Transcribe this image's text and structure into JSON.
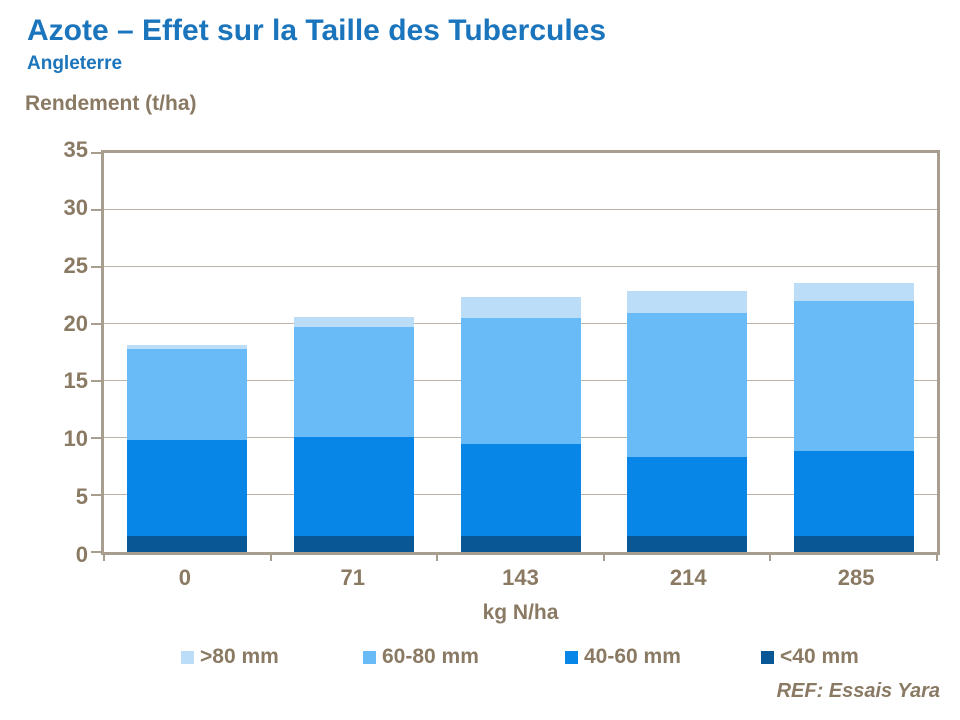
{
  "header": {
    "title": "Azote – Effet sur la Taille des Tubercules",
    "subtitle": "Angleterre"
  },
  "colors": {
    "title_blue": "#1B75BC",
    "text_brown": "#8A7A64",
    "frame": "#A79E90",
    "gridline": "#BCB4A9"
  },
  "chart_data": {
    "type": "bar",
    "stacked": true,
    "ylabel": "Rendement (t/ha)",
    "xlabel": "kg N/ha",
    "categories": [
      "0",
      "71",
      "143",
      "214",
      "285"
    ],
    "series": [
      {
        "name": "<40 mm",
        "color": "#0A5796",
        "values": [
          1.4,
          1.4,
          1.4,
          1.4,
          1.4
        ]
      },
      {
        "name": "40-60 mm",
        "color": "#0886E8",
        "values": [
          8.4,
          8.7,
          8.1,
          6.9,
          7.5
        ]
      },
      {
        "name": "60-80 mm",
        "color": "#69BBF8",
        "values": [
          8.0,
          9.6,
          11.0,
          12.7,
          13.1
        ]
      },
      {
        "name": ">80 mm",
        "color": "#BCDDF8",
        "values": [
          0.4,
          0.9,
          1.9,
          1.9,
          1.6
        ]
      }
    ],
    "totals": [
      18.2,
      20.6,
      22.4,
      22.9,
      23.6
    ],
    "legend_order": [
      ">80 mm",
      "60-80 mm",
      "40-60 mm",
      "<40 mm"
    ],
    "legend_position": "bottom",
    "ylim": [
      0,
      35
    ],
    "yticks": [
      0,
      5,
      10,
      15,
      20,
      25,
      30,
      35
    ],
    "grid": true
  },
  "footer": {
    "ref": "REF: Essais Yara"
  }
}
